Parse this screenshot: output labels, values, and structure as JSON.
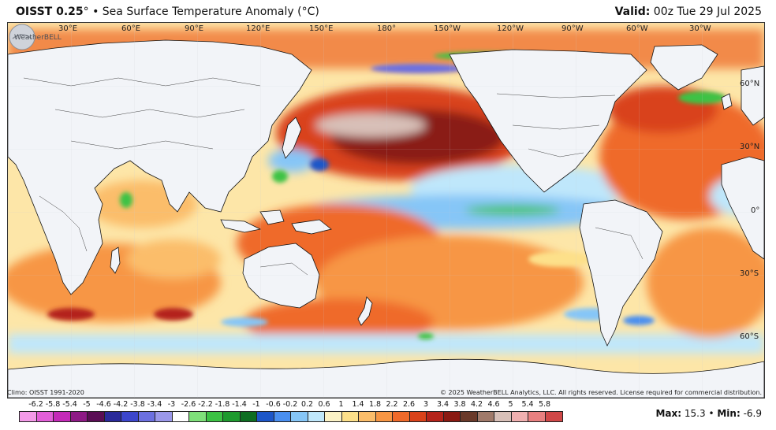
{
  "header": {
    "product": "OISST 0.25",
    "degree_mark": "°",
    "separator": "•",
    "subtitle": "Sea Surface Temperature Anomaly (°C)",
    "valid_label": "Valid:",
    "valid_value": "00z Tue 29 Jul 2025"
  },
  "map": {
    "longitude_labels": [
      "30°E",
      "60°E",
      "90°E",
      "120°E",
      "150°E",
      "180°",
      "150°W",
      "120°W",
      "90°W",
      "60°W",
      "30°W"
    ],
    "latitude_labels": [
      "60°N",
      "30°N",
      "0°",
      "30°S",
      "60°S"
    ]
  },
  "footer": {
    "climo": "Climo: OISST 1991-2020",
    "copyright": "© 2025 WeatherBELL Analytics, LLC. All rights reserved. License required for commercial distribution.",
    "max_label": "Max:",
    "max_value": "15.3",
    "min_label": "Min:",
    "min_value": "-6.9",
    "bullet": "•"
  },
  "logo": {
    "text": "WeatherBELL"
  },
  "legend": {
    "ticks": [
      "-6.2",
      "-5.8",
      "-5.4",
      "-5",
      "-4.6",
      "-4.2",
      "-3.8",
      "-3.4",
      "-3",
      "-2.6",
      "-2.2",
      "-1.8",
      "-1.4",
      "-1",
      "-0.6",
      "-0.2",
      "0.2",
      "0.6",
      "1",
      "1.4",
      "1.8",
      "2.2",
      "2.6",
      "3",
      "3.4",
      "3.8",
      "4.2",
      "4.6",
      "5",
      "5.4",
      "5.8"
    ],
    "colors": [
      "#f39ae8",
      "#e25fd8",
      "#c42ab8",
      "#8e1a86",
      "#5a0e55",
      "#2a2a9a",
      "#3c46cc",
      "#6c70e0",
      "#9b98ea",
      "#ffffff",
      "#7fe07a",
      "#3cc244",
      "#1e9a2e",
      "#0e6e22",
      "#1d56c8",
      "#4a8ff0",
      "#86c6f7",
      "#bfe7fb",
      "#fbf2c6",
      "#fde08a",
      "#fbbd6a",
      "#f79644",
      "#ef6a2a",
      "#d9421a",
      "#b4231a",
      "#8a1a12",
      "#6a3a2a",
      "#a07a6a",
      "#d8c0b8",
      "#f0b0b0",
      "#e88080",
      "#d04848"
    ]
  }
}
